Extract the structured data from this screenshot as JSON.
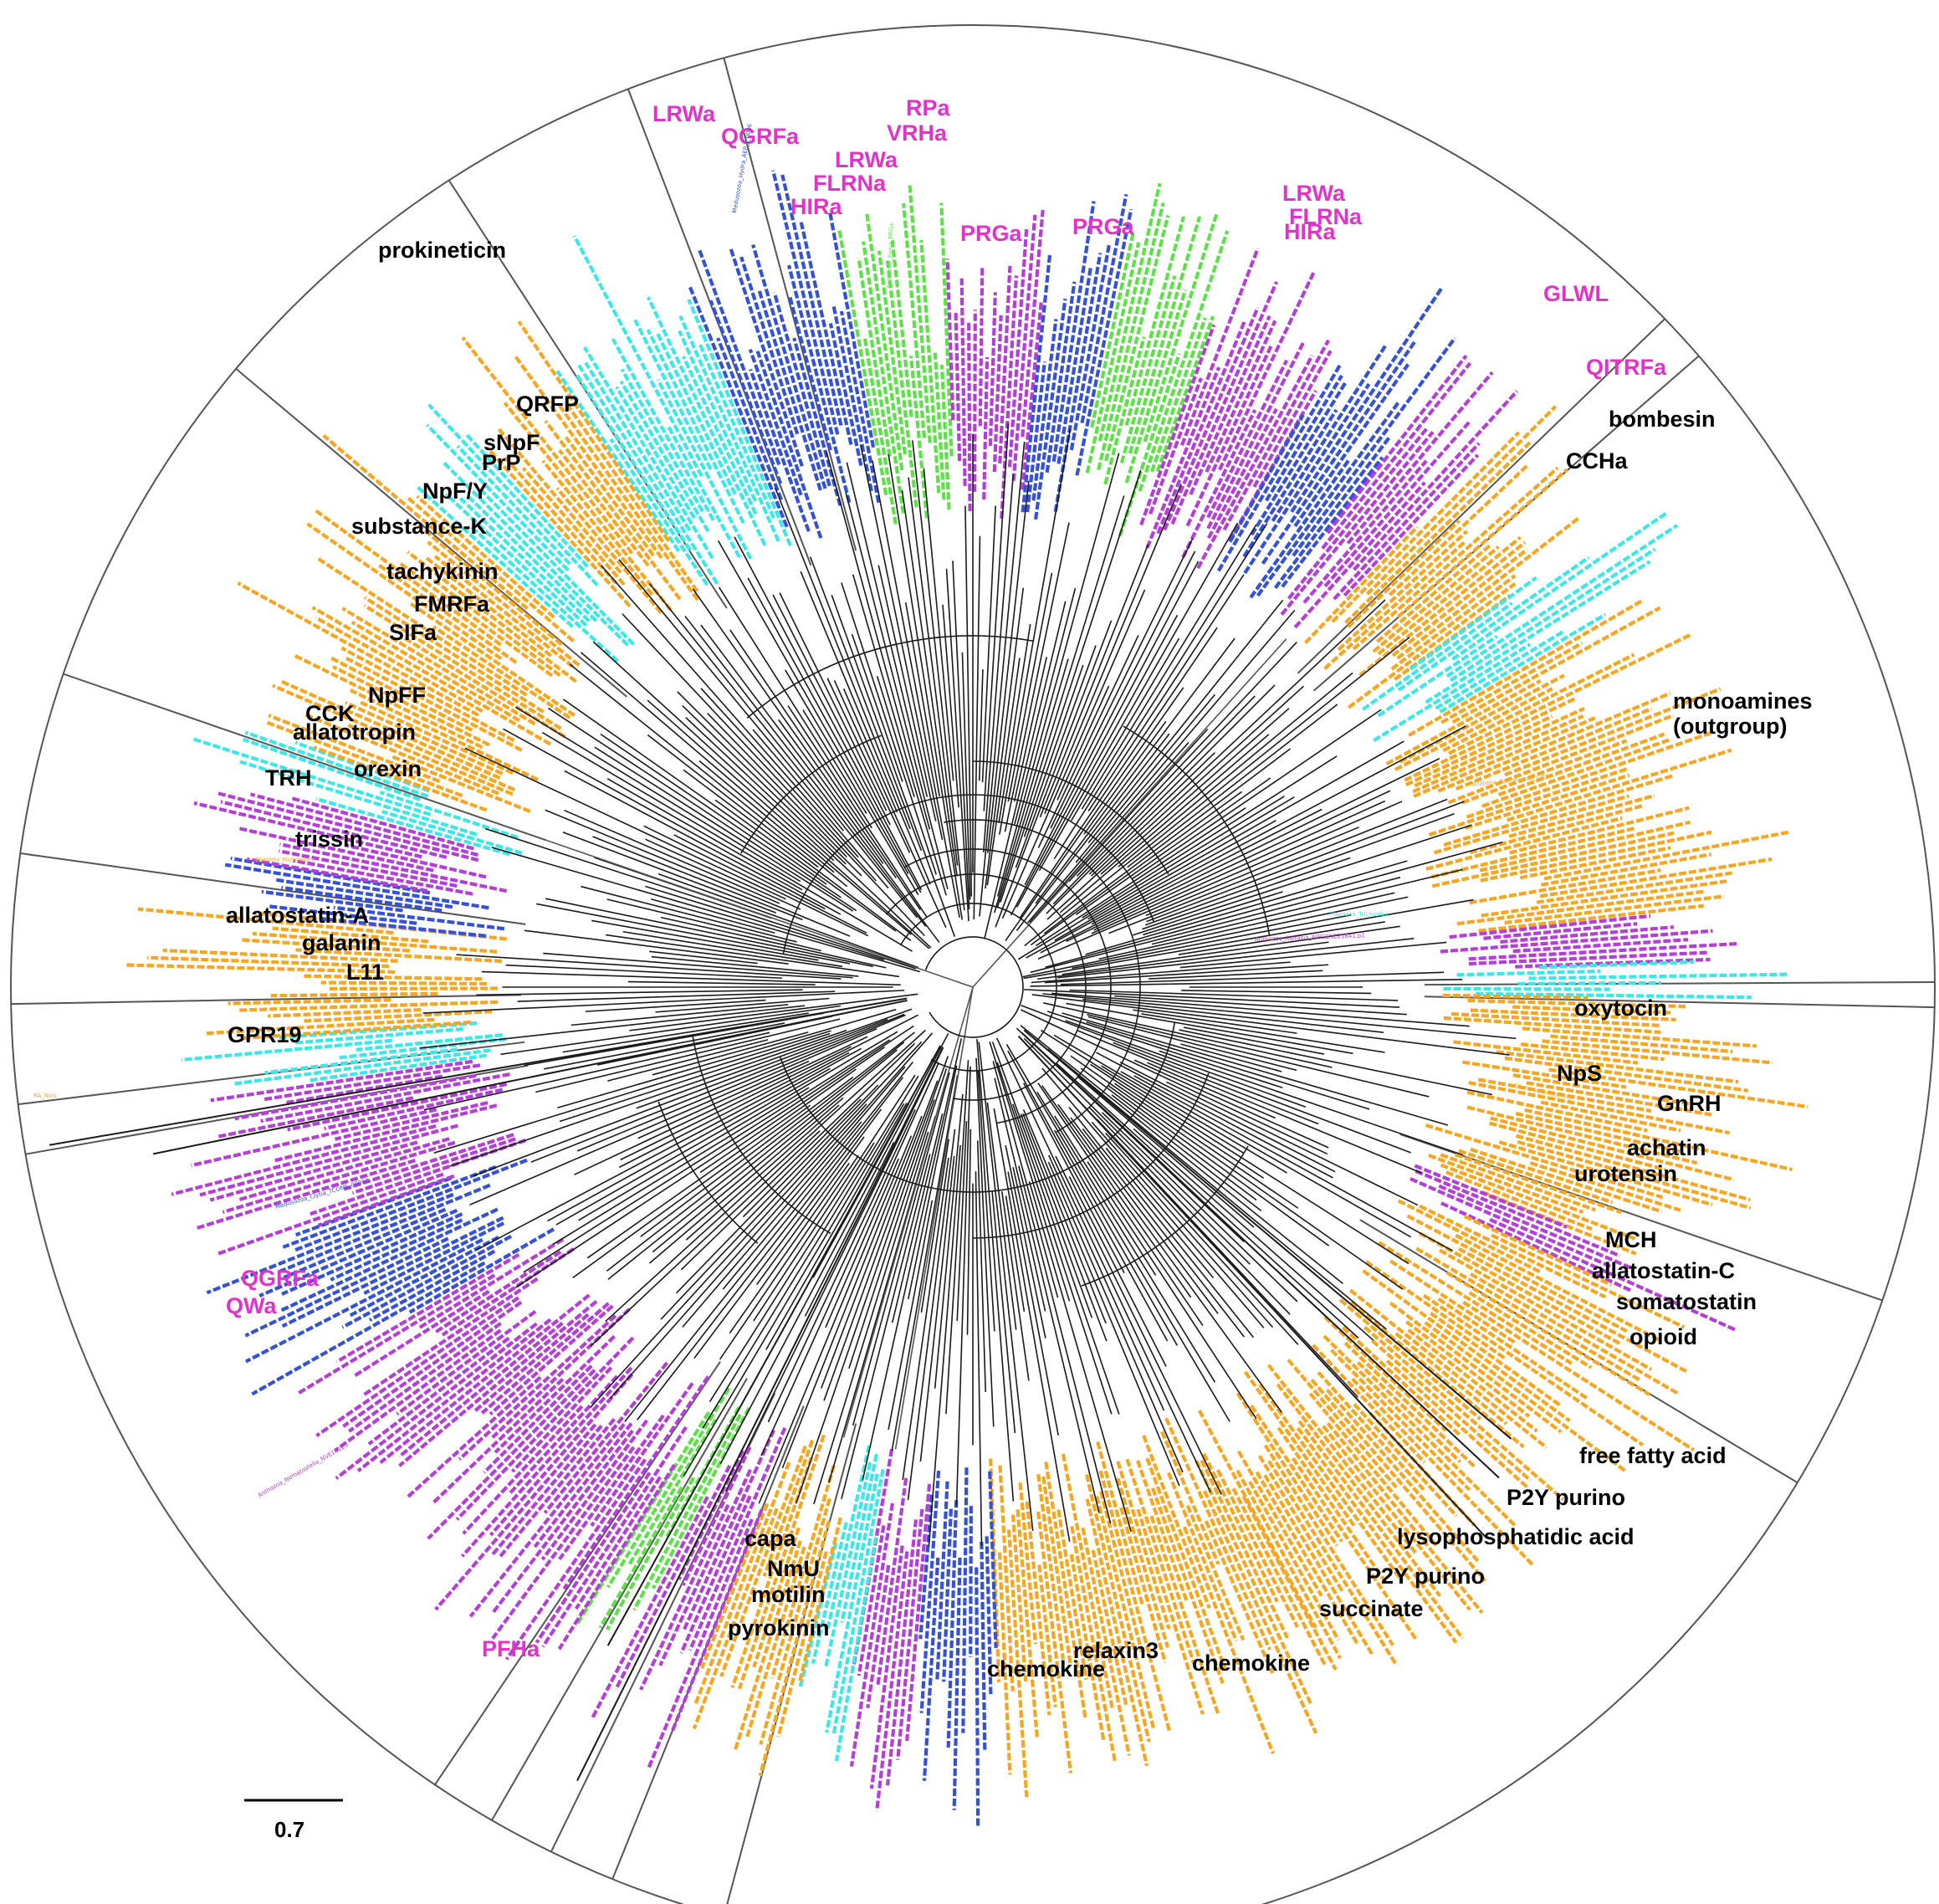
{
  "figure": {
    "scale_bar_label": "0.7",
    "colors": {
      "bilateria": "#F5A623",
      "placozoa": "#3EE6E6",
      "medusozoa": "#3552D6",
      "anthozoa": "#B43FD6",
      "cnidaria_green": "#5FE04A",
      "tree_branch": "#1a1a1a",
      "sector_line": "#555555",
      "cnidarian_family_label": "#E033C8",
      "bilaterian_family_label": "#000000"
    },
    "clade_labels": [
      {
        "text": "LRWa",
        "kind": "cnidarian"
      },
      {
        "text": "QGRFa",
        "kind": "cnidarian"
      },
      {
        "text": "RPa",
        "kind": "cnidarian"
      },
      {
        "text": "VRHa",
        "kind": "cnidarian"
      },
      {
        "text": "LRWa",
        "kind": "cnidarian"
      },
      {
        "text": "FLRNa",
        "kind": "cnidarian"
      },
      {
        "text": "HIRa",
        "kind": "cnidarian"
      },
      {
        "text": "PRGa",
        "kind": "cnidarian"
      },
      {
        "text": "PRGa",
        "kind": "cnidarian"
      },
      {
        "text": "LRWa",
        "kind": "cnidarian"
      },
      {
        "text": "FLRNa",
        "kind": "cnidarian"
      },
      {
        "text": "HIRa",
        "kind": "cnidarian"
      },
      {
        "text": "GLWL",
        "kind": "cnidarian"
      },
      {
        "text": "QITRFa",
        "kind": "cnidarian"
      },
      {
        "text": "bombesin",
        "kind": "bilaterian"
      },
      {
        "text": "CCHa",
        "kind": "bilaterian"
      },
      {
        "text": "prokineticin",
        "kind": "bilaterian"
      },
      {
        "text": "QRFP",
        "kind": "bilaterian"
      },
      {
        "text": "sNpF",
        "kind": "bilaterian"
      },
      {
        "text": "PrP",
        "kind": "bilaterian"
      },
      {
        "text": "NpF/Y",
        "kind": "bilaterian"
      },
      {
        "text": "substance-K",
        "kind": "bilaterian"
      },
      {
        "text": "tachykinin",
        "kind": "bilaterian"
      },
      {
        "text": "FMRFa",
        "kind": "bilaterian"
      },
      {
        "text": "SIFa",
        "kind": "bilaterian"
      },
      {
        "text": "NpFF",
        "kind": "bilaterian"
      },
      {
        "text": "CCK",
        "kind": "bilaterian"
      },
      {
        "text": "allatotropin",
        "kind": "bilaterian"
      },
      {
        "text": "TRH",
        "kind": "bilaterian"
      },
      {
        "text": "orexin",
        "kind": "bilaterian"
      },
      {
        "text": "trissin",
        "kind": "bilaterian"
      },
      {
        "text": "allatostatin-A",
        "kind": "bilaterian"
      },
      {
        "text": "galanin",
        "kind": "bilaterian"
      },
      {
        "text": "L11",
        "kind": "bilaterian"
      },
      {
        "text": "GPR19",
        "kind": "bilaterian"
      },
      {
        "text": "monoamines",
        "kind": "bilaterian"
      },
      {
        "text": "(outgroup)",
        "kind": "bilaterian"
      },
      {
        "text": "oxytocin",
        "kind": "bilaterian"
      },
      {
        "text": "NpS",
        "kind": "bilaterian"
      },
      {
        "text": "GnRH",
        "kind": "bilaterian"
      },
      {
        "text": "achatin",
        "kind": "bilaterian"
      },
      {
        "text": "urotensin",
        "kind": "bilaterian"
      },
      {
        "text": "MCH",
        "kind": "bilaterian"
      },
      {
        "text": "allatostatin-C",
        "kind": "bilaterian"
      },
      {
        "text": "somatostatin",
        "kind": "bilaterian"
      },
      {
        "text": "opioid",
        "kind": "bilaterian"
      },
      {
        "text": "free fatty acid",
        "kind": "bilaterian"
      },
      {
        "text": "P2Y purino",
        "kind": "bilaterian"
      },
      {
        "text": "lysophosphatidic acid",
        "kind": "bilaterian"
      },
      {
        "text": "P2Y purino",
        "kind": "bilaterian"
      },
      {
        "text": "succinate",
        "kind": "bilaterian"
      },
      {
        "text": "chemokine",
        "kind": "bilaterian"
      },
      {
        "text": "relaxin3",
        "kind": "bilaterian"
      },
      {
        "text": "chemokine",
        "kind": "bilaterian"
      },
      {
        "text": "capa",
        "kind": "bilaterian"
      },
      {
        "text": "NmU",
        "kind": "bilaterian"
      },
      {
        "text": "motilin",
        "kind": "bilaterian"
      },
      {
        "text": "pyrokinin",
        "kind": "bilaterian"
      },
      {
        "text": "QGRFa",
        "kind": "cnidarian"
      },
      {
        "text": "QWa",
        "kind": "cnidarian"
      },
      {
        "text": "PFHa",
        "kind": "cnidarian"
      }
    ],
    "leaf_samples": [
      {
        "text": "RA_Nvis",
        "group": "bilateria"
      },
      {
        "text": "Medusozoa_Clytia_TCONS_00000",
        "group": "medusozoa"
      },
      {
        "text": "Anthozoa_Nematostella_NVE10123",
        "group": "anthozoa"
      },
      {
        "text": "Anthozoa_Aiptasia_AIPGENE21841.p1",
        "group": "anthozoa"
      },
      {
        "text": "Placozoa_Trichoplax",
        "group": "placozoa"
      },
      {
        "text": "Bilateria_Platynereis",
        "group": "bilateria"
      },
      {
        "text": "Bilateria_Petromyzon_GR1_",
        "group": "bilateria"
      },
      {
        "text": "Medusozoa_Hydra_AEP_t_0006",
        "group": "medusozoa"
      },
      {
        "text": "Anthozoa_Xenia_PRGa",
        "group": "cnidaria_green"
      },
      {
        "text": "Bilateria_Drosophila_",
        "group": "bilateria"
      }
    ]
  }
}
